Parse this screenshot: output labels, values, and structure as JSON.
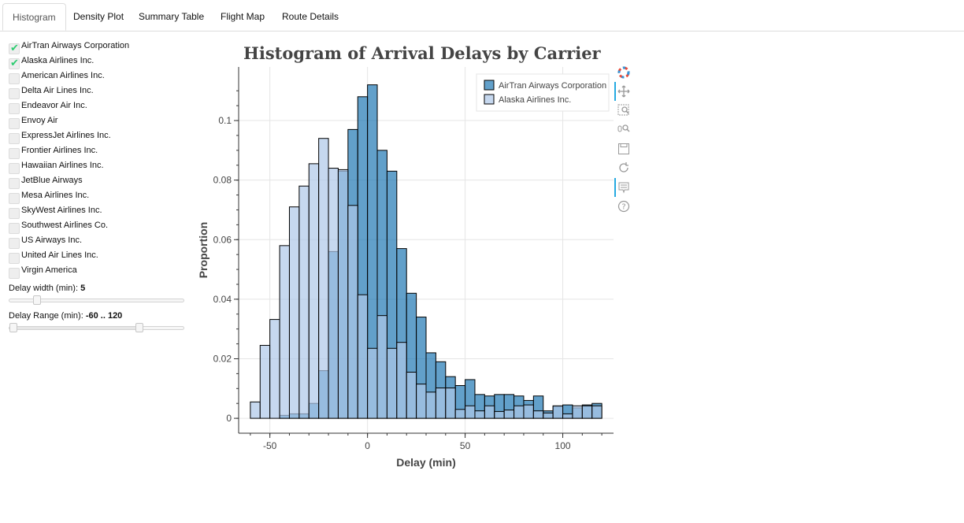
{
  "tabs": [
    {
      "label": "Histogram",
      "active": true
    },
    {
      "label": "Density Plot",
      "active": false
    },
    {
      "label": "Summary Table",
      "active": false
    },
    {
      "label": "Flight Map",
      "active": false
    },
    {
      "label": "Route Details",
      "active": false
    }
  ],
  "carriers": [
    {
      "label": "AirTran Airways Corporation",
      "checked": true
    },
    {
      "label": "Alaska Airlines Inc.",
      "checked": true
    },
    {
      "label": "American Airlines Inc.",
      "checked": false
    },
    {
      "label": "Delta Air Lines Inc.",
      "checked": false
    },
    {
      "label": "Endeavor Air Inc.",
      "checked": false
    },
    {
      "label": "Envoy Air",
      "checked": false
    },
    {
      "label": "ExpressJet Airlines Inc.",
      "checked": false
    },
    {
      "label": "Frontier Airlines Inc.",
      "checked": false
    },
    {
      "label": "Hawaiian Airlines Inc.",
      "checked": false
    },
    {
      "label": "JetBlue Airways",
      "checked": false
    },
    {
      "label": "Mesa Airlines Inc.",
      "checked": false
    },
    {
      "label": "SkyWest Airlines Inc.",
      "checked": false
    },
    {
      "label": "Southwest Airlines Co.",
      "checked": false
    },
    {
      "label": "US Airways Inc.",
      "checked": false
    },
    {
      "label": "United Air Lines Inc.",
      "checked": false
    },
    {
      "label": "Virgin America",
      "checked": false
    }
  ],
  "sliders": {
    "delay_width": {
      "label": "Delay width (min): ",
      "value_text": "5",
      "fraction": 0.14
    },
    "delay_range": {
      "label": "Delay Range (min): ",
      "value_text": "-60 .. 120",
      "start_fraction": 0.0,
      "end_fraction": 0.75
    }
  },
  "colors": {
    "airtran": "#1f77b4",
    "alaska": "#aec7e8",
    "checkmark": "#2ecc71",
    "toolbar_active": "#26aae1"
  },
  "toolbar": {
    "icons": [
      "bokeh-logo-icon",
      "pan-icon",
      "box-zoom-icon",
      "wheel-zoom-icon",
      "save-icon",
      "reset-icon",
      "hover-icon",
      "help-icon"
    ]
  },
  "chart_data": {
    "type": "bar",
    "title": "Histogram of Arrival Delays by Carrier",
    "xlabel": "Delay (min)",
    "ylabel": "Proportion",
    "xlim": [
      -66,
      126
    ],
    "ylim": [
      -0.005,
      0.118
    ],
    "xticks": [
      -50,
      0,
      50,
      100
    ],
    "xtick_labels": [
      "-50",
      "0",
      "50",
      "100"
    ],
    "yticks": [
      0,
      0.02,
      0.04,
      0.06,
      0.08,
      0.1
    ],
    "ytick_labels": [
      "0",
      "0.02",
      "0.04",
      "0.06",
      "0.08",
      "0.1"
    ],
    "grid": true,
    "legend_position": "top-right",
    "bin_width": 5,
    "bin_starts": [
      -60,
      -55,
      -50,
      -45,
      -40,
      -35,
      -30,
      -25,
      -20,
      -15,
      -10,
      -5,
      0,
      5,
      10,
      15,
      20,
      25,
      30,
      35,
      40,
      45,
      50,
      55,
      60,
      65,
      70,
      75,
      80,
      85,
      90,
      95,
      100,
      105,
      110,
      115
    ],
    "series": [
      {
        "name": "AirTran Airways Corporation",
        "values": [
          0,
          0,
          0,
          0.001,
          0.0015,
          0.0015,
          0.005,
          0.016,
          0.056,
          0.083,
          0.097,
          0.108,
          0.112,
          0.09,
          0.083,
          0.057,
          0.042,
          0.034,
          0.022,
          0.019,
          0.014,
          0.011,
          0.013,
          0.008,
          0.0075,
          0.008,
          0.008,
          0.0075,
          0.006,
          0.0075,
          0.0025,
          0.004,
          0.0045,
          0.0035,
          0.0045,
          0.005
        ]
      },
      {
        "name": "Alaska Airlines Inc.",
        "values": [
          0.0055,
          0.0245,
          0.0332,
          0.058,
          0.071,
          0.078,
          0.0855,
          0.094,
          0.084,
          0.0835,
          0.0715,
          0.0415,
          0.0235,
          0.0345,
          0.0235,
          0.0255,
          0.0155,
          0.0115,
          0.0088,
          0.0102,
          0.0102,
          0.003,
          0.0042,
          0.0025,
          0.0042,
          0.0023,
          0.0028,
          0.0042,
          0.0045,
          0.0025,
          0.0018,
          0.0042,
          0.0015,
          0.0042,
          0.0042,
          0.0042
        ]
      }
    ]
  }
}
